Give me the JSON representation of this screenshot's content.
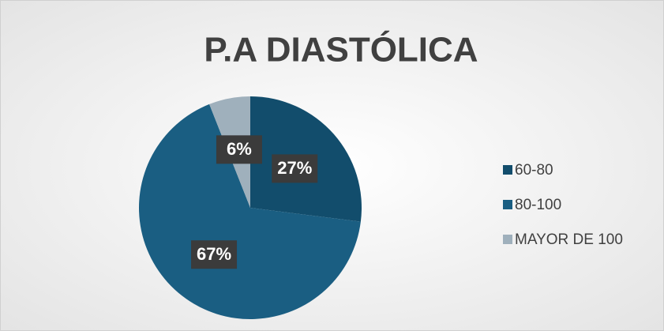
{
  "chart_data": {
    "type": "pie",
    "title": "P.A DIASTÓLICA",
    "categories": [
      "60-80",
      "80-100",
      "MAYOR DE 100"
    ],
    "values": [
      27,
      67,
      6
    ],
    "value_labels": [
      "27%",
      "67%",
      "6%"
    ],
    "colors": [
      "#124d6c",
      "#1a5e82",
      "#9fb0bc"
    ],
    "legend": "right"
  }
}
